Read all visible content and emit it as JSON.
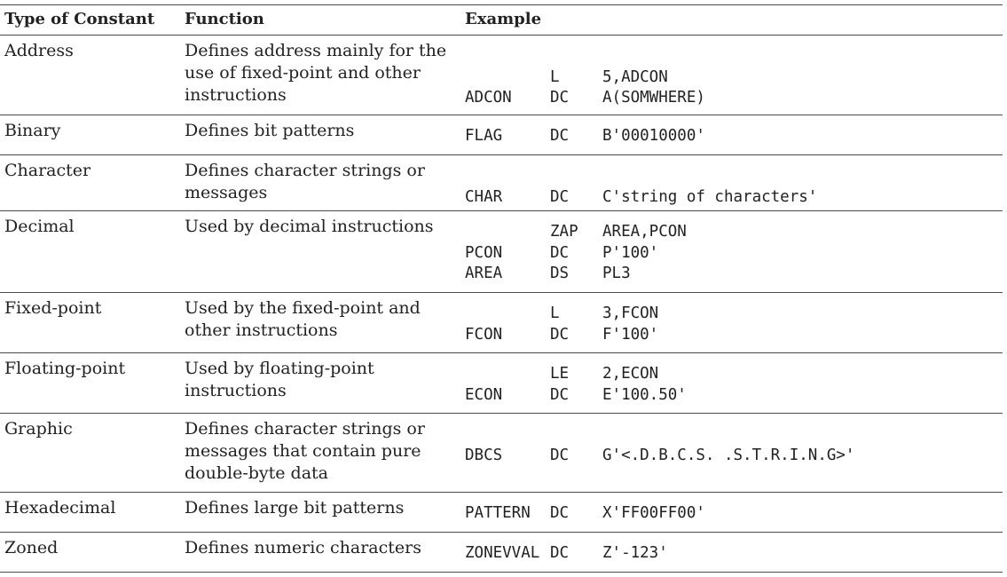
{
  "headers": {
    "type": "Type of Constant",
    "function": "Function",
    "example": "Example"
  },
  "rows": [
    {
      "type": "Address",
      "function": [
        "Defines address mainly for the",
        "use of fixed-point and other",
        "instructions"
      ],
      "example": [
        {
          "label": "",
          "op": "L",
          "arg": "5,ADCON"
        },
        {
          "label": "ADCON",
          "op": "DC",
          "arg": "A(SOMWHERE)"
        }
      ]
    },
    {
      "type": "Binary",
      "function": [
        "Defines bit patterns"
      ],
      "example": [
        {
          "label": "FLAG",
          "op": "DC",
          "arg": "B'00010000'"
        }
      ]
    },
    {
      "type": "Character",
      "function": [
        "Defines character strings or",
        "messages"
      ],
      "example": [
        {
          "label": "CHAR",
          "op": "DC",
          "arg": "C'string of characters'"
        }
      ]
    },
    {
      "type": "Decimal",
      "function": [
        "Used by decimal instructions"
      ],
      "example": [
        {
          "label": "",
          "op": "ZAP",
          "arg": "AREA,PCON"
        },
        {
          "label": "PCON",
          "op": "DC",
          "arg": "P'100'"
        },
        {
          "label": "AREA",
          "op": "DS",
          "arg": "PL3"
        }
      ]
    },
    {
      "type": "Fixed-point",
      "function": [
        "Used by the fixed-point and",
        "other instructions"
      ],
      "example": [
        {
          "label": "",
          "op": "L",
          "arg": "3,FCON"
        },
        {
          "label": "FCON",
          "op": "DC",
          "arg": "F'100'"
        }
      ]
    },
    {
      "type": "Floating-point",
      "function": [
        "Used by floating-point",
        "instructions"
      ],
      "example": [
        {
          "label": "",
          "op": "LE",
          "arg": "2,ECON"
        },
        {
          "label": "ECON",
          "op": "DC",
          "arg": "E'100.50'"
        }
      ]
    },
    {
      "type": "Graphic",
      "function": [
        "Defines character strings or",
        "messages that contain pure",
        "double-byte data"
      ],
      "example": [
        {
          "label": "DBCS",
          "op": "DC",
          "arg": "G'<.D.B.C.S. .S.T.R.I.N.G>'"
        }
      ]
    },
    {
      "type": "Hexadecimal",
      "function": [
        "Defines large bit patterns"
      ],
      "example": [
        {
          "label": "PATTERN",
          "op": "DC",
          "arg": "X'FF00FF00'"
        }
      ]
    },
    {
      "type": "Zoned",
      "function": [
        "Defines numeric characters"
      ],
      "example": [
        {
          "label": "ZONEVVAL",
          "op": "DC",
          "arg": "Z'-123'"
        }
      ]
    }
  ]
}
